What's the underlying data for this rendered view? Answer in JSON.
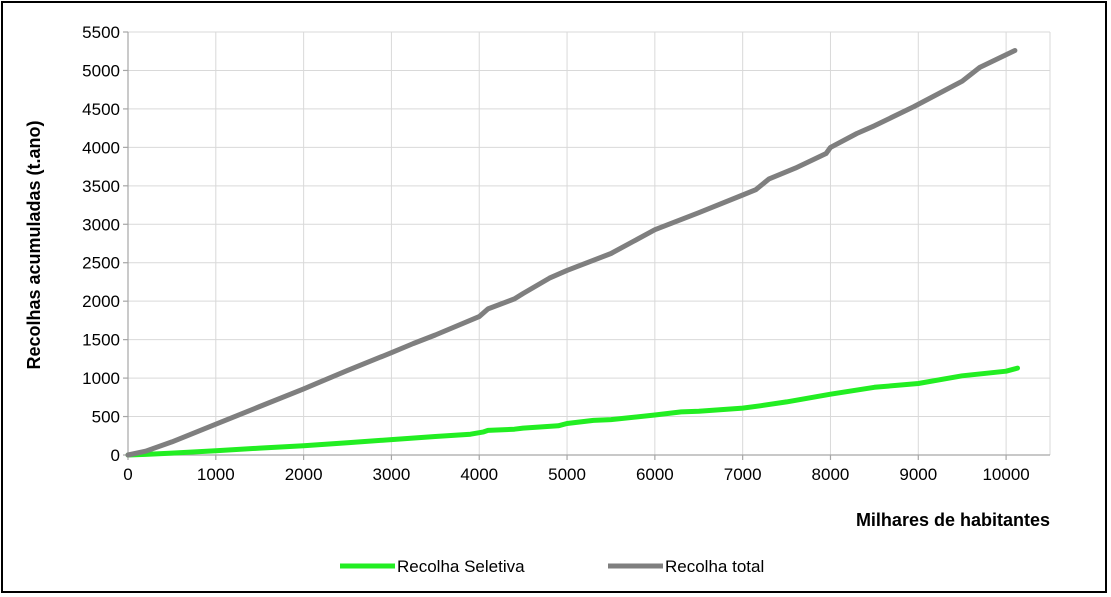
{
  "chart_data": {
    "type": "line",
    "title": "",
    "xlabel": "Milhares de habitantes",
    "ylabel": "Recolhas acumuladas (t.ano)",
    "xlim": [
      0,
      10500
    ],
    "ylim": [
      0,
      5500
    ],
    "xticks": [
      0,
      1000,
      2000,
      3000,
      4000,
      5000,
      6000,
      7000,
      8000,
      9000,
      10000
    ],
    "yticks": [
      0,
      500,
      1000,
      1500,
      2000,
      2500,
      3000,
      3500,
      4000,
      4500,
      5000,
      5500
    ],
    "grid": true,
    "legend_position": "bottom",
    "series": [
      {
        "name": "Recolha Seletiva",
        "color": "#22ee22",
        "points": [
          [
            0,
            0
          ],
          [
            200,
            8
          ],
          [
            500,
            25
          ],
          [
            1000,
            55
          ],
          [
            1500,
            90
          ],
          [
            2000,
            120
          ],
          [
            2500,
            160
          ],
          [
            3000,
            200
          ],
          [
            3500,
            240
          ],
          [
            3900,
            270
          ],
          [
            4050,
            300
          ],
          [
            4100,
            320
          ],
          [
            4400,
            335
          ],
          [
            4500,
            350
          ],
          [
            4900,
            380
          ],
          [
            5000,
            410
          ],
          [
            5300,
            450
          ],
          [
            5500,
            460
          ],
          [
            6000,
            520
          ],
          [
            6300,
            560
          ],
          [
            6500,
            570
          ],
          [
            7000,
            610
          ],
          [
            7200,
            640
          ],
          [
            7500,
            690
          ],
          [
            8000,
            790
          ],
          [
            8500,
            880
          ],
          [
            9000,
            930
          ],
          [
            9500,
            1030
          ],
          [
            10000,
            1090
          ],
          [
            10130,
            1130
          ]
        ]
      },
      {
        "name": "Recolha total",
        "color": "#7f7f7f",
        "points": [
          [
            0,
            0
          ],
          [
            200,
            50
          ],
          [
            500,
            170
          ],
          [
            1000,
            400
          ],
          [
            1500,
            630
          ],
          [
            2000,
            860
          ],
          [
            2500,
            1100
          ],
          [
            3000,
            1330
          ],
          [
            3250,
            1450
          ],
          [
            3500,
            1560
          ],
          [
            4000,
            1800
          ],
          [
            4100,
            1900
          ],
          [
            4400,
            2030
          ],
          [
            4500,
            2100
          ],
          [
            4800,
            2300
          ],
          [
            5000,
            2400
          ],
          [
            5500,
            2620
          ],
          [
            6000,
            2930
          ],
          [
            6500,
            3150
          ],
          [
            7000,
            3380
          ],
          [
            7150,
            3450
          ],
          [
            7300,
            3590
          ],
          [
            7600,
            3730
          ],
          [
            7950,
            3920
          ],
          [
            8000,
            4000
          ],
          [
            8300,
            4180
          ],
          [
            8500,
            4280
          ],
          [
            8950,
            4530
          ],
          [
            9500,
            4860
          ],
          [
            9700,
            5040
          ],
          [
            10100,
            5260
          ]
        ]
      }
    ]
  }
}
